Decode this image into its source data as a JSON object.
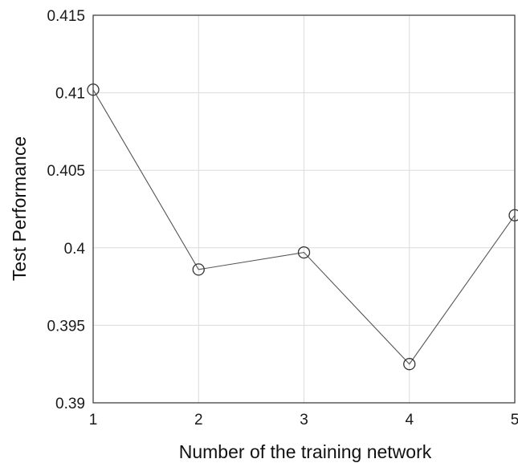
{
  "chart_data": {
    "type": "line",
    "title": "",
    "xlabel": "Number of the training network",
    "ylabel": "Test Performance",
    "x": [
      1,
      2,
      3,
      4,
      5
    ],
    "xlim": [
      1,
      5
    ],
    "ylim": [
      0.39,
      0.415
    ],
    "xticks": [
      "1",
      "2",
      "3",
      "4",
      "5"
    ],
    "yticks": [
      "0.39",
      "0.395",
      "0.4",
      "0.405",
      "0.41",
      "0.415"
    ],
    "series": [
      {
        "values": [
          0.4102,
          0.3986,
          0.3997,
          0.3925,
          0.4021
        ],
        "marker": "circle"
      }
    ],
    "grid": true,
    "legend": "none",
    "colors": {
      "line": "#555555",
      "grid": "#dcdcdc",
      "axis": "#333333",
      "marker": "#333333"
    }
  }
}
